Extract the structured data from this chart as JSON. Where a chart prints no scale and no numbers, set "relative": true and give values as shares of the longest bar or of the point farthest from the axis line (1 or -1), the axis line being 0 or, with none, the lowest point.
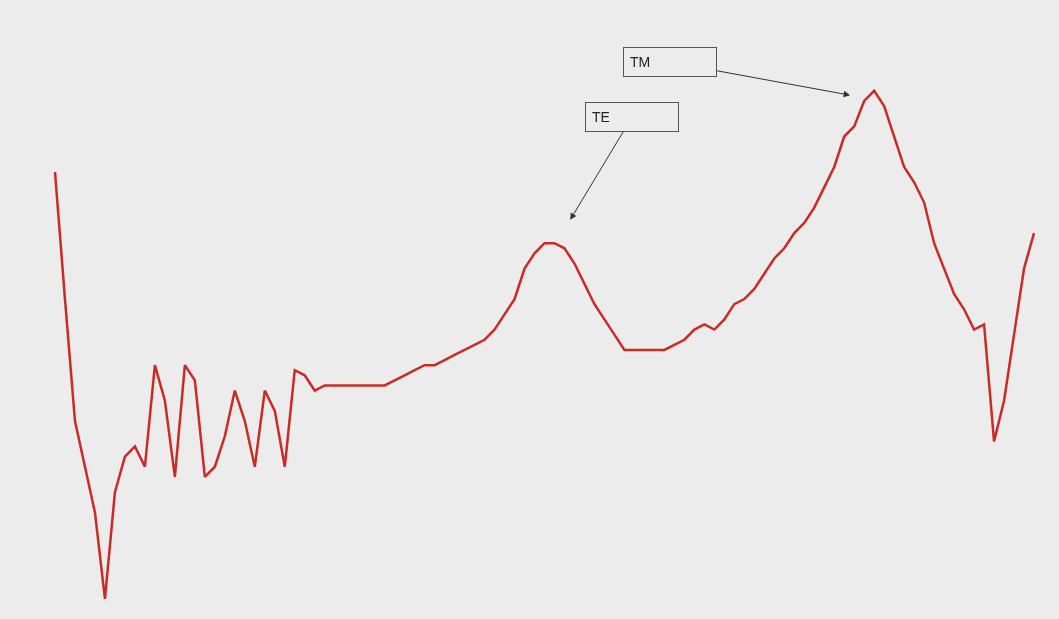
{
  "chart_data": {
    "type": "line",
    "relative": true,
    "categories": [
      null,
      null,
      null,
      null,
      null,
      null,
      null,
      null,
      null,
      null,
      null,
      null,
      null,
      null,
      null,
      null,
      null,
      null,
      null,
      null,
      null,
      null,
      null,
      null,
      null,
      null,
      null,
      null,
      null,
      null,
      null,
      null,
      null,
      null,
      null,
      null,
      null,
      null,
      null,
      null,
      null,
      null,
      null,
      null,
      null,
      null,
      null,
      null,
      null,
      null,
      null,
      null,
      null,
      null,
      null,
      null,
      null,
      null,
      null,
      null,
      null,
      null,
      null,
      null,
      null,
      null,
      null,
      null,
      null,
      null,
      null,
      null,
      null,
      null,
      null,
      null,
      null,
      null,
      null,
      null,
      null,
      null,
      null,
      null,
      null,
      null,
      null,
      null,
      null,
      null,
      null,
      null,
      null,
      null,
      null,
      null,
      null,
      null,
      null
    ],
    "series": [
      {
        "color": "#cc2a24",
        "values": [
          0.84,
          0.59,
          0.35,
          0.26,
          0.17,
          0,
          0.21,
          0.28,
          0.3,
          0.26,
          0.46,
          0.39,
          0.24,
          0.46,
          0.43,
          0.24,
          0.26,
          0.32,
          0.41,
          0.35,
          0.26,
          0.41,
          0.37,
          0.26,
          0.45,
          0.44,
          0.41,
          0.42,
          0.42,
          0.42,
          0.42,
          0.42,
          0.42,
          0.42,
          0.43,
          0.44,
          0.45,
          0.46,
          0.46,
          0.47,
          0.48,
          0.49,
          0.5,
          0.51,
          0.53,
          0.56,
          0.59,
          0.65,
          0.68,
          0.7,
          0.7,
          0.69,
          0.66,
          0.62,
          0.58,
          0.55,
          0.52,
          0.49,
          0.49,
          0.49,
          0.49,
          0.49,
          0.5,
          0.51,
          0.53,
          0.54,
          0.53,
          0.55,
          0.58,
          0.59,
          0.61,
          0.64,
          0.67,
          0.69,
          0.72,
          0.74,
          0.77,
          0.81,
          0.85,
          0.91,
          0.93,
          0.98,
          1,
          0.97,
          0.91,
          0.85,
          0.82,
          0.78,
          0.7,
          0.65,
          0.6,
          0.57,
          0.53,
          0.54,
          0.31,
          0.39,
          0.52,
          0.65,
          0.72
        ]
      }
    ],
    "annotations": [
      "TE",
      "TM"
    ],
    "marker": "none",
    "line_style": "solid"
  }
}
